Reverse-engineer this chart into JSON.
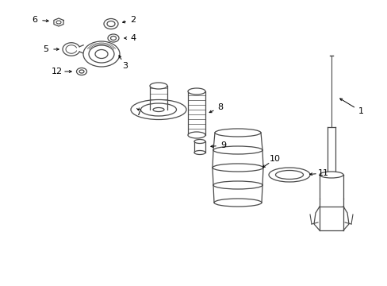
{
  "bg_color": "#ffffff",
  "line_color": "#4a4a4a",
  "label_color": "#000000",
  "fig_width": 4.89,
  "fig_height": 3.6,
  "dpi": 100
}
